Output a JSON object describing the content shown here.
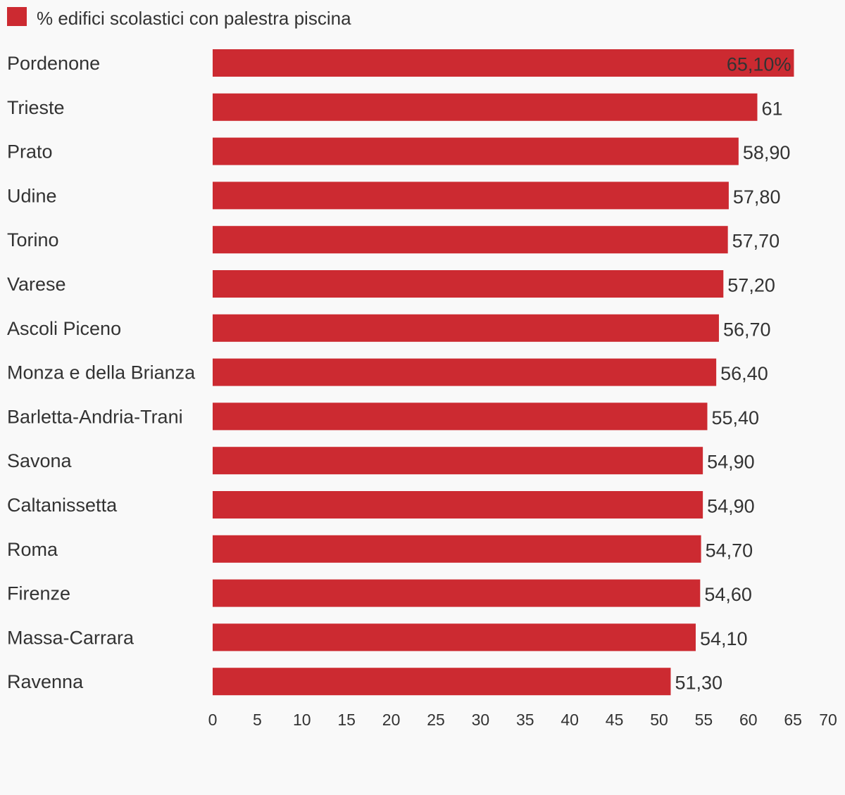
{
  "colors": {
    "bar": "#cc2a31",
    "background": "#f9f9f9",
    "text": "#333333"
  },
  "chart_data": {
    "type": "bar",
    "orientation": "horizontal",
    "legend": {
      "position": "top-left",
      "entries": [
        "% edifici scolastici con palestra piscina"
      ]
    },
    "series": [
      {
        "name": "% edifici scolastici con palestra piscina",
        "values": [
          65.1,
          61,
          58.9,
          57.8,
          57.7,
          57.2,
          56.7,
          56.4,
          55.4,
          54.9,
          54.9,
          54.7,
          54.6,
          54.1,
          51.3
        ],
        "labels": [
          "65,10%",
          "61",
          "58,90",
          "57,80",
          "57,70",
          "57,20",
          "56,70",
          "56,40",
          "55,40",
          "54,90",
          "54,90",
          "54,70",
          "54,60",
          "54,10",
          "51,30"
        ]
      }
    ],
    "categories": [
      "Pordenone",
      "Trieste",
      "Prato",
      "Udine",
      "Torino",
      "Varese",
      "Ascoli Piceno",
      "Monza e della Brianza",
      "Barletta-Andria-Trani",
      "Savona",
      "Caltanissetta",
      "Roma",
      "Firenze",
      "Massa-Carrara",
      "Ravenna"
    ],
    "xlim": [
      0,
      70
    ],
    "xticks": [
      "0",
      "5",
      "10",
      "15",
      "20",
      "25",
      "30",
      "35",
      "40",
      "45",
      "50",
      "55",
      "60",
      "65",
      "70"
    ],
    "grid": false
  }
}
